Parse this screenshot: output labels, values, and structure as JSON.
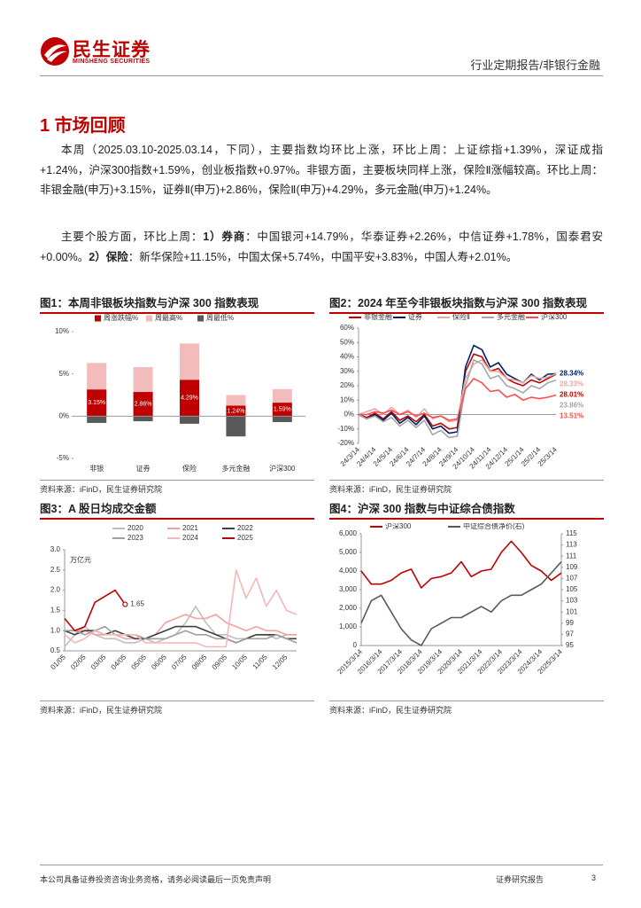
{
  "header": {
    "logo_cn": "民生证券",
    "logo_en": "MINSHENG SECURITIES",
    "report_type": "行业定期报告/非银行金融"
  },
  "section_title": "1 市场回顾",
  "paragraphs": [
    {
      "segments": [
        {
          "text": "本周（2025.03.10-2025.03.14，下同），主要指数均环比上涨，环比上周：上证综指+1.39%，深证成指+1.24%，沪深300指数+1.59%，创业板指数+0.97%。非银方面，主要板块同样上涨，保险Ⅱ涨幅较高。环比上周：非银金融(申万)+3.15%，证券Ⅱ(申万)+2.86%，保险Ⅱ(申万)+4.29%，多元金融(申万)+1.24%。",
          "bold": false
        }
      ]
    },
    {
      "segments": [
        {
          "text": "主要个股方面，环比上周：",
          "bold": false
        },
        {
          "text": "1）券商",
          "bold": true
        },
        {
          "text": "：中国银河+14.79%，华泰证券+2.26%，中信证券+1.78%，国泰君安+0.00%。",
          "bold": false
        },
        {
          "text": "2）保险",
          "bold": true
        },
        {
          "text": "：新华保险+11.15%，中国太保+5.74%，中国平安+3.83%，中国人寿+2.01%。",
          "bold": false
        }
      ]
    }
  ],
  "figures": [
    {
      "caption": "图1：本周非银板块指数与沪深 300 指数表现",
      "source": "资料来源：iFinD，民生证券研究院"
    },
    {
      "caption": "图2：2024 年至今非银板块指数与沪深 300 指数表现",
      "source": "资料来源：iFinD，民生证券研究院"
    },
    {
      "caption": "图3：A 股日均成交金额",
      "source": "资料来源：iFinD，民生证券研究院"
    },
    {
      "caption": "图4：沪深 300 指数与中证综合债指数",
      "source": "资料来源：iFinD，民生证券研究院"
    }
  ],
  "chart_data": [
    {
      "type": "bar",
      "categories": [
        "非银",
        "证券",
        "保险",
        "多元金融",
        "沪深300"
      ],
      "series": [
        {
          "name": "周最高%",
          "color": "#f2bcbc",
          "values": [
            6.3,
            5.8,
            8.6,
            2.5,
            3.2
          ]
        },
        {
          "name": "周涨跌幅%",
          "color": "#c00000",
          "values": [
            3.15,
            2.86,
            4.29,
            1.24,
            1.59
          ],
          "value_labels": [
            "3.15%",
            "2.86%",
            "4.29%",
            "1.24%",
            "1.59%"
          ]
        },
        {
          "name": "周最低%",
          "color": "#595959",
          "values": [
            -0.8,
            -0.6,
            -0.9,
            -2.4,
            -0.7
          ]
        }
      ],
      "legend_order": [
        1,
        0,
        2
      ],
      "ylim": [
        -5,
        10
      ],
      "yticks": [
        {
          "value": -5,
          "label": "-5%"
        },
        {
          "value": 0,
          "label": "0%"
        },
        {
          "value": 5,
          "label": "5%"
        },
        {
          "value": 10,
          "label": "10%"
        }
      ],
      "grid": false,
      "legend": "top"
    },
    {
      "type": "line",
      "categories": [
        "24/3/14",
        null,
        "24/4/14",
        null,
        "24/5/14",
        null,
        "24/6/14",
        null,
        "24/7/14",
        null,
        "24/8/14",
        null,
        "24/9/14",
        null,
        "24/10/14",
        null,
        "24/11/14",
        null,
        "24/12/14",
        null,
        "25/1/14",
        null,
        "25/2/14",
        null,
        "25/3/14"
      ],
      "series": [
        {
          "name": "非银金融",
          "color": "#c00000",
          "end_label": "28.01%",
          "values": [
            0,
            -2,
            1,
            -3,
            2,
            -4,
            -1,
            -5,
            0,
            -8,
            -6,
            -10,
            -9,
            30,
            42,
            40,
            30,
            32,
            25,
            22,
            20,
            24,
            22,
            25,
            28.01
          ]
        },
        {
          "name": "证券",
          "color": "#002060",
          "end_label": "28.34%",
          "values": [
            0,
            -3,
            0,
            -4,
            1,
            -6,
            -2,
            -7,
            -1,
            -10,
            -8,
            -13,
            -12,
            33,
            48,
            45,
            33,
            36,
            28,
            25,
            22,
            28,
            24,
            28,
            28.34
          ]
        },
        {
          "name": "保险Ⅱ",
          "color": "#e3a9a9",
          "end_label": "28.33%",
          "values": [
            0,
            2,
            4,
            0,
            5,
            0,
            3,
            -2,
            4,
            -3,
            -1,
            -5,
            -4,
            25,
            35,
            38,
            30,
            30,
            25,
            24,
            22,
            27,
            25,
            26,
            28.33
          ]
        },
        {
          "name": "多元金融",
          "color": "#a6a6a6",
          "end_label": "23.86%",
          "values": [
            0,
            -3,
            -1,
            -5,
            -2,
            -8,
            -4,
            -9,
            -4,
            -14,
            -11,
            -16,
            -15,
            20,
            38,
            35,
            25,
            27,
            20,
            18,
            15,
            20,
            18,
            22,
            23.86
          ]
        },
        {
          "name": "沪深300",
          "color": "#ff4d4d",
          "end_label": "13.51%",
          "values": [
            0,
            0,
            2,
            1,
            3,
            0,
            2,
            -1,
            1,
            -2,
            -1,
            -4,
            -3,
            18,
            25,
            22,
            16,
            17,
            12,
            14,
            10,
            12,
            11,
            12,
            13.51
          ]
        }
      ],
      "ylim": [
        -20,
        60
      ],
      "yticks": [
        {
          "value": -20,
          "label": "-20%"
        },
        {
          "value": -10,
          "label": "-10%"
        },
        {
          "value": 0,
          "label": "0%"
        },
        {
          "value": 10,
          "label": "10%"
        },
        {
          "value": 20,
          "label": "20%"
        },
        {
          "value": 30,
          "label": "30%"
        },
        {
          "value": 40,
          "label": "40%"
        },
        {
          "value": 50,
          "label": "50%"
        },
        {
          "value": 60,
          "label": "60%"
        }
      ],
      "grid": false,
      "legend": "top"
    },
    {
      "type": "line",
      "y_label": "万亿元",
      "categories": [
        "01/05",
        null,
        "02/05",
        null,
        "03/05",
        null,
        "04/05",
        null,
        "05/05",
        null,
        "06/05",
        null,
        "07/05",
        null,
        "08/05",
        null,
        "09/05",
        null,
        "10/05",
        null,
        "11/05",
        null,
        "12/05",
        null
      ],
      "series": [
        {
          "name": "2020",
          "color": "#bfbfbf",
          "values": [
            0.6,
            0.9,
            1.1,
            0.9,
            0.8,
            0.8,
            0.7,
            0.7,
            0.8,
            0.7,
            0.8,
            0.9,
            1.2,
            1.6,
            1.2,
            0.9,
            0.9,
            0.8,
            0.8,
            0.9,
            0.9,
            0.8,
            0.9,
            0.9
          ]
        },
        {
          "name": "2021",
          "color": "#f4a0a0",
          "values": [
            1.0,
            1.0,
            1.0,
            0.9,
            0.9,
            0.9,
            0.8,
            0.8,
            0.8,
            0.9,
            1.2,
            1.3,
            1.4,
            1.3,
            1.3,
            1.4,
            1.2,
            1.1,
            1.0,
            1.1,
            1.0,
            1.0,
            0.9,
            0.9
          ]
        },
        {
          "name": "2022",
          "color": "#404040",
          "values": [
            1.0,
            0.9,
            1.0,
            1.0,
            0.9,
            1.0,
            0.9,
            0.8,
            0.8,
            0.9,
            1.0,
            1.1,
            1.1,
            1.1,
            1.0,
            0.9,
            0.8,
            0.7,
            0.8,
            0.9,
            0.9,
            0.9,
            0.8,
            0.8
          ]
        },
        {
          "name": "2023",
          "color": "#a0a0a0",
          "values": [
            1.0,
            1.0,
            0.9,
            1.0,
            1.1,
            0.9,
            0.9,
            0.9,
            0.8,
            0.8,
            0.8,
            0.9,
            1.0,
            0.9,
            0.9,
            0.8,
            0.8,
            0.7,
            0.8,
            0.8,
            0.8,
            0.9,
            0.8,
            0.7
          ]
        },
        {
          "name": "2024",
          "color": "#f7b7b7",
          "values": [
            0.9,
            0.7,
            0.8,
            1.0,
            0.9,
            0.9,
            0.9,
            0.9,
            0.7,
            0.7,
            0.7,
            0.7,
            0.7,
            0.7,
            0.6,
            0.6,
            0.6,
            2.5,
            1.8,
            2.3,
            1.6,
            2.0,
            1.5,
            1.4
          ]
        },
        {
          "name": "2025",
          "color": "#c00000",
          "data_label": "last",
          "values": [
            1.3,
            1.0,
            1.1,
            1.7,
            1.85,
            2.0,
            1.65,
            null,
            null,
            null,
            null,
            null,
            null,
            null,
            null,
            null,
            null,
            null,
            null,
            null,
            null,
            null,
            null,
            null
          ]
        }
      ],
      "ylim": [
        0.5,
        3.0
      ],
      "yticks": [
        0.5,
        {
          "value": 1,
          "label": "1.0"
        },
        1.5,
        {
          "value": 2,
          "label": "2.0"
        },
        2.5,
        {
          "value": 3,
          "label": "3.0"
        }
      ],
      "grid": false,
      "legend": "top"
    },
    {
      "type": "line",
      "categories": [
        "2015/3/14",
        null,
        "2016/3/14",
        null,
        "2017/3/14",
        null,
        "2018/3/14",
        null,
        "2019/3/14",
        null,
        "2020/3/14",
        null,
        "2021/3/14",
        null,
        "2022/3/14",
        null,
        "2023/3/14",
        null,
        "2024/3/14",
        null,
        "2025/3/14"
      ],
      "series": [
        {
          "name": "沪深300",
          "color": "#c00000",
          "values": [
            4000,
            3300,
            3300,
            3500,
            3900,
            4100,
            3100,
            3600,
            3700,
            3900,
            4500,
            3700,
            4000,
            4100,
            5000,
            5600,
            5000,
            4300,
            4000,
            3500,
            3900
          ]
        },
        {
          "name": "中证综合债净价(右)",
          "color": "#595959",
          "axis": "y2",
          "values": [
            99,
            103,
            104,
            101,
            98,
            96,
            95,
            98,
            99,
            100,
            100,
            101,
            102,
            101,
            103,
            104,
            104,
            105,
            106,
            108,
            110
          ]
        }
      ],
      "ylim": [
        0,
        6000
      ],
      "yticks": [
        0,
        {
          "value": 1000,
          "label": "1,000"
        },
        {
          "value": 2000,
          "label": "2,000"
        },
        {
          "value": 3000,
          "label": "3,000"
        },
        {
          "value": 4000,
          "label": "4,000"
        },
        {
          "value": 5000,
          "label": "5,000"
        },
        {
          "value": 6000,
          "label": "6,000"
        }
      ],
      "y2lim": [
        95,
        115
      ],
      "y2ticks": [
        95,
        97,
        99,
        101,
        103,
        105,
        107,
        109,
        111,
        113,
        115
      ],
      "grid": false,
      "legend": "top"
    }
  ],
  "footer": {
    "disclaimer": "本公司具备证券投资咨询业务资格，请务必阅读最后一页免责声明",
    "report_label": "证券研究报告",
    "page": 3
  }
}
